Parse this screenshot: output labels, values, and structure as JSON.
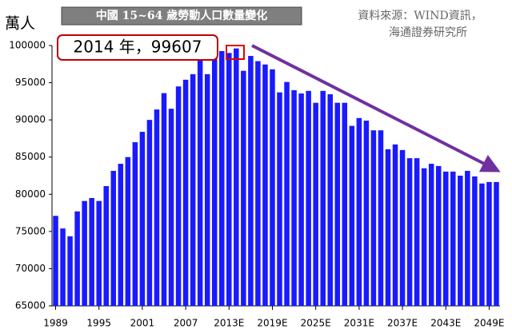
{
  "chart_data": {
    "type": "bar",
    "title": "中國 15~64 歲勞動人口數量變化",
    "source": [
      "資料來源：WIND資訊，",
      "海通證券研究所"
    ],
    "y_label": "萬人",
    "annotation": "2014 年，99607",
    "categories": [
      "1989",
      null,
      null,
      null,
      null,
      null,
      "1995",
      null,
      null,
      null,
      null,
      null,
      "2001",
      null,
      null,
      null,
      null,
      null,
      "2007",
      null,
      null,
      null,
      null,
      null,
      "2013E",
      null,
      null,
      null,
      null,
      null,
      "2019E",
      null,
      null,
      null,
      null,
      null,
      "2025E",
      null,
      null,
      null,
      null,
      null,
      "2031E",
      null,
      null,
      null,
      null,
      null,
      "2037E",
      null,
      null,
      null,
      null,
      null,
      "2043E",
      null,
      null,
      null,
      null,
      null,
      "2049E",
      null
    ],
    "values": [
      77100,
      75400,
      74350,
      77700,
      79100,
      79500,
      79100,
      81100,
      83150,
      84100,
      85000,
      87000,
      88400,
      90000,
      91400,
      93600,
      91500,
      94500,
      95400,
      96150,
      98000,
      96150,
      98600,
      99250,
      99000,
      99607,
      96600,
      98600,
      97900,
      97450,
      96800,
      93700,
      95100,
      94000,
      93550,
      93900,
      92300,
      93900,
      93450,
      92300,
      92300,
      89200,
      90250,
      89900,
      88600,
      88600,
      86050,
      86700,
      85950,
      84850,
      84850,
      83500,
      84100,
      83800,
      83050,
      83050,
      82500,
      83150,
      82400,
      81450,
      81650,
      81650
    ],
    "color": "#1a1aff",
    "ylim": [
      65000,
      100000
    ],
    "yticks": [
      65000,
      70000,
      75000,
      80000,
      85000,
      90000,
      95000,
      100000
    ],
    "grid": false
  }
}
